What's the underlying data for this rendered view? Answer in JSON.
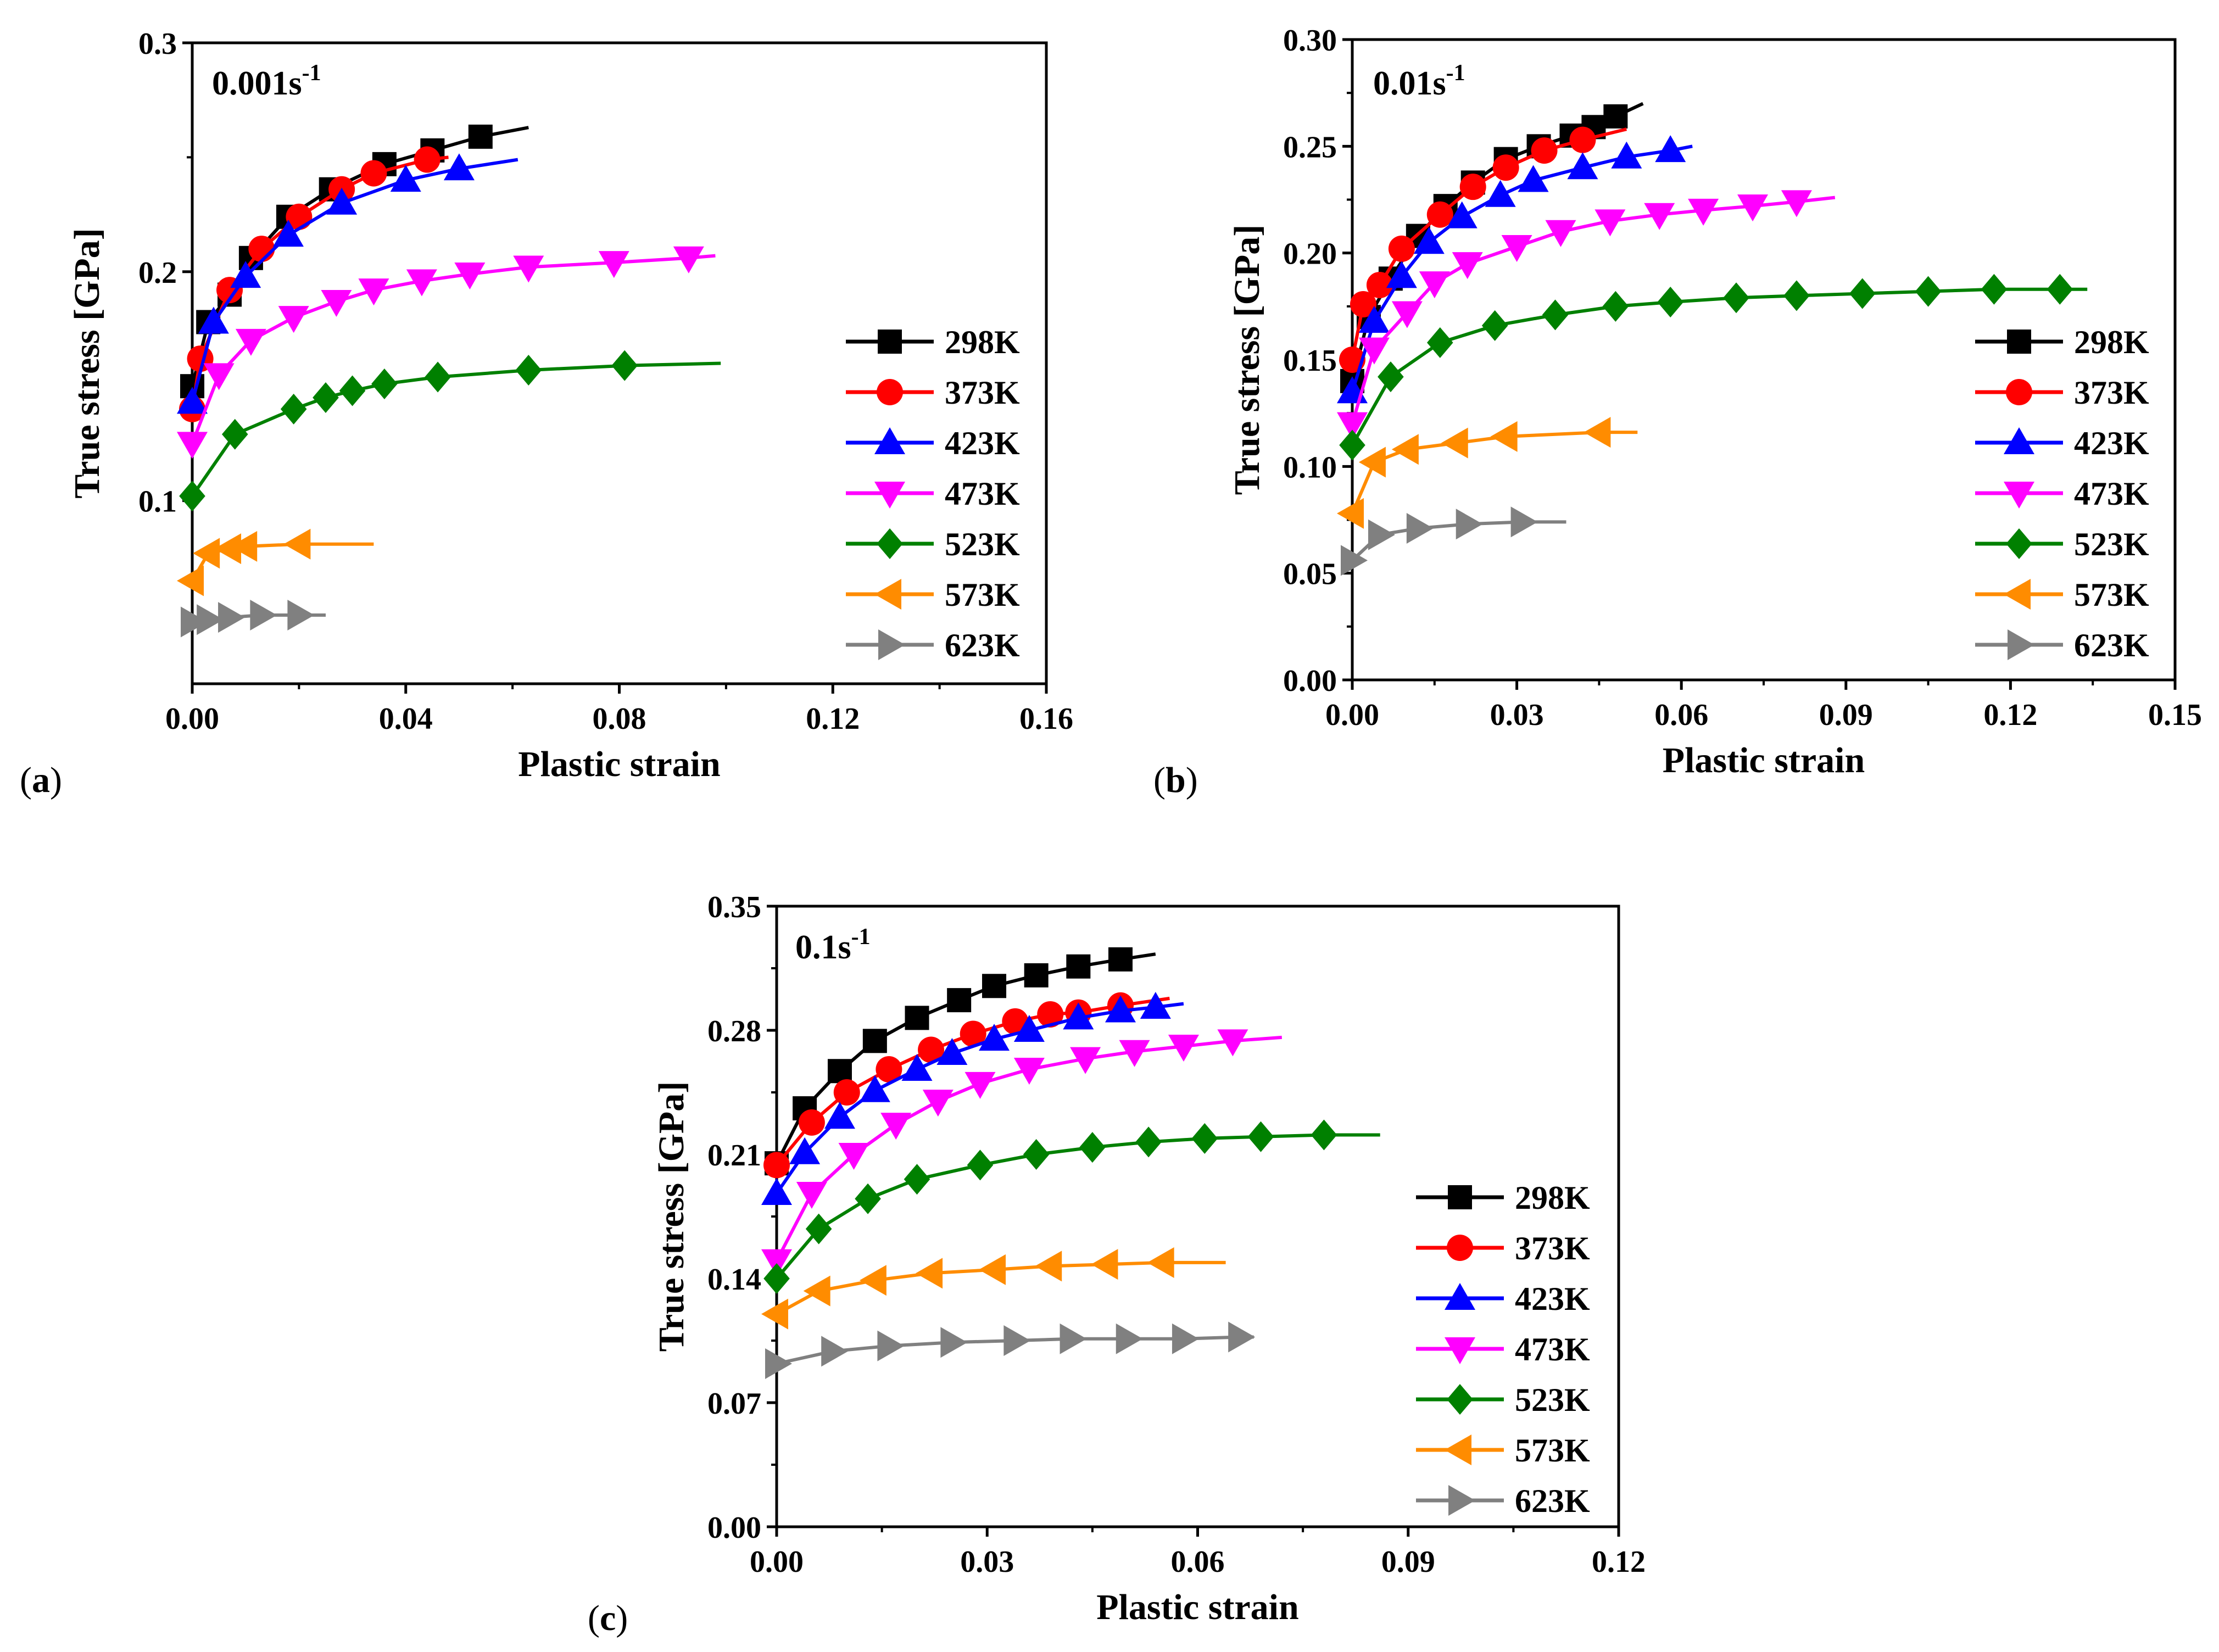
{
  "chart_data": [
    {
      "panel": "a",
      "type": "line",
      "rate_label": "0.001s",
      "rate_sup": "-1",
      "xlabel": "Plastic strain",
      "ylabel": "True stress [GPa]",
      "xlim": [
        0,
        0.16
      ],
      "ylim": [
        0.02,
        0.3
      ],
      "xticks": [
        "0.00",
        "0.04",
        "0.08",
        "0.12",
        "0.16"
      ],
      "xtick_values": [
        0,
        0.04,
        0.08,
        0.12,
        0.16
      ],
      "yticks": [
        "0.1",
        "0.2",
        "0.3"
      ],
      "ytick_values": [
        0.1,
        0.2,
        0.3
      ],
      "legend_position": "right-middle",
      "series": [
        {
          "name": "298K",
          "color": "#000000",
          "marker": "square",
          "points": [
            [
              0,
              0.15
            ],
            [
              0.003,
              0.178
            ],
            [
              0.007,
              0.19
            ],
            [
              0.011,
              0.206
            ],
            [
              0.018,
              0.224
            ],
            [
              0.026,
              0.236
            ],
            [
              0.036,
              0.247
            ],
            [
              0.045,
              0.253
            ],
            [
              0.054,
              0.259
            ],
            [
              0.063,
              0.263
            ]
          ]
        },
        {
          "name": "373K",
          "color": "#ff0000",
          "marker": "circle",
          "points": [
            [
              0,
              0.14
            ],
            [
              0.0015,
              0.162
            ],
            [
              0.007,
              0.192
            ],
            [
              0.013,
              0.21
            ],
            [
              0.02,
              0.224
            ],
            [
              0.028,
              0.236
            ],
            [
              0.034,
              0.243
            ],
            [
              0.044,
              0.249
            ],
            [
              0.048,
              0.25
            ]
          ]
        },
        {
          "name": "423K",
          "color": "#0000ff",
          "marker": "triangle-up",
          "points": [
            [
              0,
              0.143
            ],
            [
              0.004,
              0.178
            ],
            [
              0.01,
              0.198
            ],
            [
              0.018,
              0.216
            ],
            [
              0.028,
              0.23
            ],
            [
              0.04,
              0.24
            ],
            [
              0.05,
              0.245
            ],
            [
              0.061,
              0.249
            ]
          ]
        },
        {
          "name": "473K",
          "color": "#ff00ff",
          "marker": "triangle-down",
          "points": [
            [
              0,
              0.125
            ],
            [
              0.005,
              0.155
            ],
            [
              0.011,
              0.17
            ],
            [
              0.019,
              0.18
            ],
            [
              0.027,
              0.187
            ],
            [
              0.034,
              0.192
            ],
            [
              0.043,
              0.196
            ],
            [
              0.052,
              0.199
            ],
            [
              0.063,
              0.202
            ],
            [
              0.079,
              0.204
            ],
            [
              0.093,
              0.206
            ],
            [
              0.098,
              0.207
            ]
          ]
        },
        {
          "name": "523K",
          "color": "#008000",
          "marker": "diamond",
          "points": [
            [
              0,
              0.102
            ],
            [
              0.008,
              0.129
            ],
            [
              0.019,
              0.14
            ],
            [
              0.025,
              0.145
            ],
            [
              0.03,
              0.148
            ],
            [
              0.036,
              0.151
            ],
            [
              0.046,
              0.154
            ],
            [
              0.063,
              0.157
            ],
            [
              0.081,
              0.159
            ],
            [
              0.099,
              0.16
            ]
          ]
        },
        {
          "name": "573K",
          "color": "#ff8c00",
          "marker": "triangle-left",
          "points": [
            [
              0,
              0.065
            ],
            [
              0.003,
              0.077
            ],
            [
              0.007,
              0.079
            ],
            [
              0.01,
              0.08
            ],
            [
              0.02,
              0.081
            ],
            [
              0.034,
              0.081
            ]
          ]
        },
        {
          "name": "623K",
          "color": "#808080",
          "marker": "triangle-right",
          "points": [
            [
              0,
              0.047
            ],
            [
              0.003,
              0.048
            ],
            [
              0.007,
              0.049
            ],
            [
              0.013,
              0.05
            ],
            [
              0.02,
              0.05
            ],
            [
              0.025,
              0.05
            ]
          ]
        }
      ]
    },
    {
      "panel": "b",
      "type": "line",
      "rate_label": "0.01s",
      "rate_sup": "-1",
      "xlabel": "Plastic strain",
      "ylabel": "True stress [GPa]",
      "xlim": [
        0,
        0.15
      ],
      "ylim": [
        0,
        0.3
      ],
      "xticks": [
        "0.00",
        "0.03",
        "0.06",
        "0.09",
        "0.12",
        "0.15"
      ],
      "xtick_values": [
        0,
        0.03,
        0.06,
        0.09,
        0.12,
        0.15
      ],
      "yticks": [
        "0.00",
        "0.05",
        "0.10",
        "0.15",
        "0.20",
        "0.25",
        "0.30"
      ],
      "ytick_values": [
        0,
        0.05,
        0.1,
        0.15,
        0.2,
        0.25,
        0.3
      ],
      "legend_position": "right-bottom",
      "series": [
        {
          "name": "298K",
          "color": "#000000",
          "marker": "square",
          "points": [
            [
              0,
              0.14
            ],
            [
              0.003,
              0.17
            ],
            [
              0.007,
              0.188
            ],
            [
              0.012,
              0.208
            ],
            [
              0.017,
              0.222
            ],
            [
              0.022,
              0.233
            ],
            [
              0.028,
              0.244
            ],
            [
              0.034,
              0.25
            ],
            [
              0.04,
              0.255
            ],
            [
              0.044,
              0.259
            ],
            [
              0.048,
              0.264
            ],
            [
              0.053,
              0.27
            ]
          ]
        },
        {
          "name": "373K",
          "color": "#ff0000",
          "marker": "circle",
          "points": [
            [
              0,
              0.15
            ],
            [
              0.002,
              0.176
            ],
            [
              0.005,
              0.185
            ],
            [
              0.009,
              0.202
            ],
            [
              0.016,
              0.218
            ],
            [
              0.022,
              0.231
            ],
            [
              0.028,
              0.24
            ],
            [
              0.035,
              0.248
            ],
            [
              0.042,
              0.253
            ],
            [
              0.05,
              0.258
            ]
          ]
        },
        {
          "name": "423K",
          "color": "#0000ff",
          "marker": "triangle-up",
          "points": [
            [
              0,
              0.135
            ],
            [
              0.004,
              0.168
            ],
            [
              0.009,
              0.189
            ],
            [
              0.014,
              0.205
            ],
            [
              0.02,
              0.217
            ],
            [
              0.027,
              0.227
            ],
            [
              0.033,
              0.234
            ],
            [
              0.042,
              0.24
            ],
            [
              0.05,
              0.245
            ],
            [
              0.058,
              0.248
            ],
            [
              0.062,
              0.25
            ]
          ]
        },
        {
          "name": "473K",
          "color": "#ff00ff",
          "marker": "triangle-down",
          "points": [
            [
              0,
              0.12
            ],
            [
              0.004,
              0.155
            ],
            [
              0.01,
              0.172
            ],
            [
              0.015,
              0.186
            ],
            [
              0.021,
              0.195
            ],
            [
              0.03,
              0.203
            ],
            [
              0.038,
              0.21
            ],
            [
              0.047,
              0.215
            ],
            [
              0.056,
              0.218
            ],
            [
              0.064,
              0.22
            ],
            [
              0.073,
              0.222
            ],
            [
              0.081,
              0.224
            ],
            [
              0.088,
              0.226
            ]
          ]
        },
        {
          "name": "523K",
          "color": "#008000",
          "marker": "diamond",
          "points": [
            [
              0,
              0.11
            ],
            [
              0.007,
              0.142
            ],
            [
              0.016,
              0.158
            ],
            [
              0.026,
              0.166
            ],
            [
              0.037,
              0.171
            ],
            [
              0.048,
              0.175
            ],
            [
              0.058,
              0.177
            ],
            [
              0.07,
              0.179
            ],
            [
              0.081,
              0.18
            ],
            [
              0.093,
              0.181
            ],
            [
              0.105,
              0.182
            ],
            [
              0.117,
              0.183
            ],
            [
              0.129,
              0.183
            ],
            [
              0.134,
              0.183
            ]
          ]
        },
        {
          "name": "573K",
          "color": "#ff8c00",
          "marker": "triangle-left",
          "points": [
            [
              0,
              0.078
            ],
            [
              0.004,
              0.102
            ],
            [
              0.01,
              0.108
            ],
            [
              0.019,
              0.111
            ],
            [
              0.028,
              0.114
            ],
            [
              0.045,
              0.116
            ],
            [
              0.052,
              0.116
            ]
          ]
        },
        {
          "name": "623K",
          "color": "#808080",
          "marker": "triangle-right",
          "points": [
            [
              0,
              0.056
            ],
            [
              0.005,
              0.068
            ],
            [
              0.012,
              0.071
            ],
            [
              0.021,
              0.073
            ],
            [
              0.031,
              0.074
            ],
            [
              0.039,
              0.074
            ]
          ]
        }
      ]
    },
    {
      "panel": "c",
      "type": "line",
      "rate_label": "0.1s",
      "rate_sup": "-1",
      "xlabel": "Plastic strain",
      "ylabel": "True stress [GPa]",
      "xlim": [
        0,
        0.12
      ],
      "ylim": [
        0,
        0.35
      ],
      "xticks": [
        "0.00",
        "0.03",
        "0.06",
        "0.09",
        "0.12"
      ],
      "xtick_values": [
        0,
        0.03,
        0.06,
        0.09,
        0.12
      ],
      "yticks": [
        "0.00",
        "0.07",
        "0.14",
        "0.21",
        "0.28",
        "0.35"
      ],
      "ytick_values": [
        0,
        0.07,
        0.14,
        0.21,
        0.28,
        0.35
      ],
      "legend_position": "right-bottom",
      "series": [
        {
          "name": "298K",
          "color": "#000000",
          "marker": "square",
          "points": [
            [
              0,
              0.205
            ],
            [
              0.004,
              0.236
            ],
            [
              0.009,
              0.257
            ],
            [
              0.014,
              0.274
            ],
            [
              0.02,
              0.287
            ],
            [
              0.026,
              0.297
            ],
            [
              0.031,
              0.305
            ],
            [
              0.037,
              0.311
            ],
            [
              0.043,
              0.316
            ],
            [
              0.049,
              0.32
            ],
            [
              0.054,
              0.323
            ]
          ]
        },
        {
          "name": "373K",
          "color": "#ff0000",
          "marker": "circle",
          "points": [
            [
              0,
              0.204
            ],
            [
              0.005,
              0.228
            ],
            [
              0.01,
              0.245
            ],
            [
              0.016,
              0.258
            ],
            [
              0.022,
              0.269
            ],
            [
              0.028,
              0.278
            ],
            [
              0.034,
              0.285
            ],
            [
              0.039,
              0.289
            ],
            [
              0.043,
              0.29
            ],
            [
              0.049,
              0.294
            ],
            [
              0.056,
              0.298
            ]
          ]
        },
        {
          "name": "423K",
          "color": "#0000ff",
          "marker": "triangle-up",
          "points": [
            [
              0,
              0.188
            ],
            [
              0.004,
              0.211
            ],
            [
              0.009,
              0.231
            ],
            [
              0.014,
              0.246
            ],
            [
              0.02,
              0.258
            ],
            [
              0.025,
              0.267
            ],
            [
              0.031,
              0.275
            ],
            [
              0.036,
              0.28
            ],
            [
              0.043,
              0.287
            ],
            [
              0.049,
              0.291
            ],
            [
              0.054,
              0.293
            ],
            [
              0.058,
              0.295
            ]
          ]
        },
        {
          "name": "473K",
          "color": "#ff00ff",
          "marker": "triangle-down",
          "points": [
            [
              0,
              0.15
            ],
            [
              0.005,
              0.188
            ],
            [
              0.011,
              0.21
            ],
            [
              0.017,
              0.227
            ],
            [
              0.023,
              0.24
            ],
            [
              0.029,
              0.25
            ],
            [
              0.036,
              0.258
            ],
            [
              0.044,
              0.264
            ],
            [
              0.051,
              0.268
            ],
            [
              0.058,
              0.271
            ],
            [
              0.065,
              0.274
            ],
            [
              0.072,
              0.276
            ]
          ]
        },
        {
          "name": "523K",
          "color": "#008000",
          "marker": "diamond",
          "points": [
            [
              0,
              0.14
            ],
            [
              0.006,
              0.168
            ],
            [
              0.013,
              0.185
            ],
            [
              0.02,
              0.196
            ],
            [
              0.029,
              0.204
            ],
            [
              0.037,
              0.21
            ],
            [
              0.045,
              0.214
            ],
            [
              0.053,
              0.217
            ],
            [
              0.061,
              0.219
            ],
            [
              0.069,
              0.22
            ],
            [
              0.078,
              0.221
            ],
            [
              0.086,
              0.221
            ]
          ]
        },
        {
          "name": "573K",
          "color": "#ff8c00",
          "marker": "triangle-left",
          "points": [
            [
              0,
              0.12
            ],
            [
              0.006,
              0.133
            ],
            [
              0.014,
              0.139
            ],
            [
              0.022,
              0.143
            ],
            [
              0.031,
              0.145
            ],
            [
              0.039,
              0.147
            ],
            [
              0.047,
              0.148
            ],
            [
              0.055,
              0.149
            ],
            [
              0.064,
              0.149
            ]
          ]
        },
        {
          "name": "623K",
          "color": "#808080",
          "marker": "triangle-right",
          "points": [
            [
              0,
              0.092
            ],
            [
              0.008,
              0.099
            ],
            [
              0.016,
              0.102
            ],
            [
              0.025,
              0.104
            ],
            [
              0.034,
              0.105
            ],
            [
              0.042,
              0.106
            ],
            [
              0.05,
              0.106
            ],
            [
              0.058,
              0.106
            ],
            [
              0.066,
              0.107
            ],
            [
              0.068,
              0.107
            ]
          ]
        }
      ]
    }
  ]
}
